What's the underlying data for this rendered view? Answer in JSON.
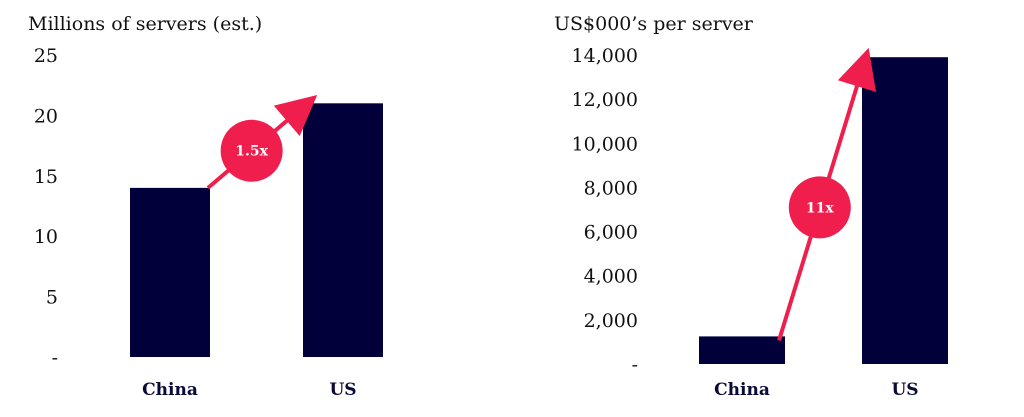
{
  "chart_data": [
    {
      "type": "bar",
      "title": "Millions of servers (est.)",
      "categories": [
        "China",
        "US"
      ],
      "values": [
        14,
        21
      ],
      "ylim": [
        0,
        25
      ],
      "yticks": [
        0,
        5,
        10,
        15,
        20,
        25
      ],
      "ytick_labels": [
        "-",
        "5",
        "10",
        "15",
        "20",
        "25"
      ],
      "annotation": "1.5x",
      "grid": false,
      "colors": {
        "bar": "#02003a",
        "arrow": "#ef1e4c"
      }
    },
    {
      "type": "bar",
      "title": "US$000’s per server",
      "categories": [
        "China",
        "US"
      ],
      "values": [
        1250,
        13900
      ],
      "ylim": [
        0,
        14000
      ],
      "yticks": [
        0,
        2000,
        4000,
        6000,
        8000,
        10000,
        12000,
        14000
      ],
      "ytick_labels": [
        "-",
        "2,000",
        "4,000",
        "6,000",
        "8,000",
        "10,000",
        "12,000",
        "14,000"
      ],
      "annotation": "11x",
      "grid": false,
      "colors": {
        "bar": "#02003a",
        "arrow": "#ef1e4c"
      }
    }
  ]
}
